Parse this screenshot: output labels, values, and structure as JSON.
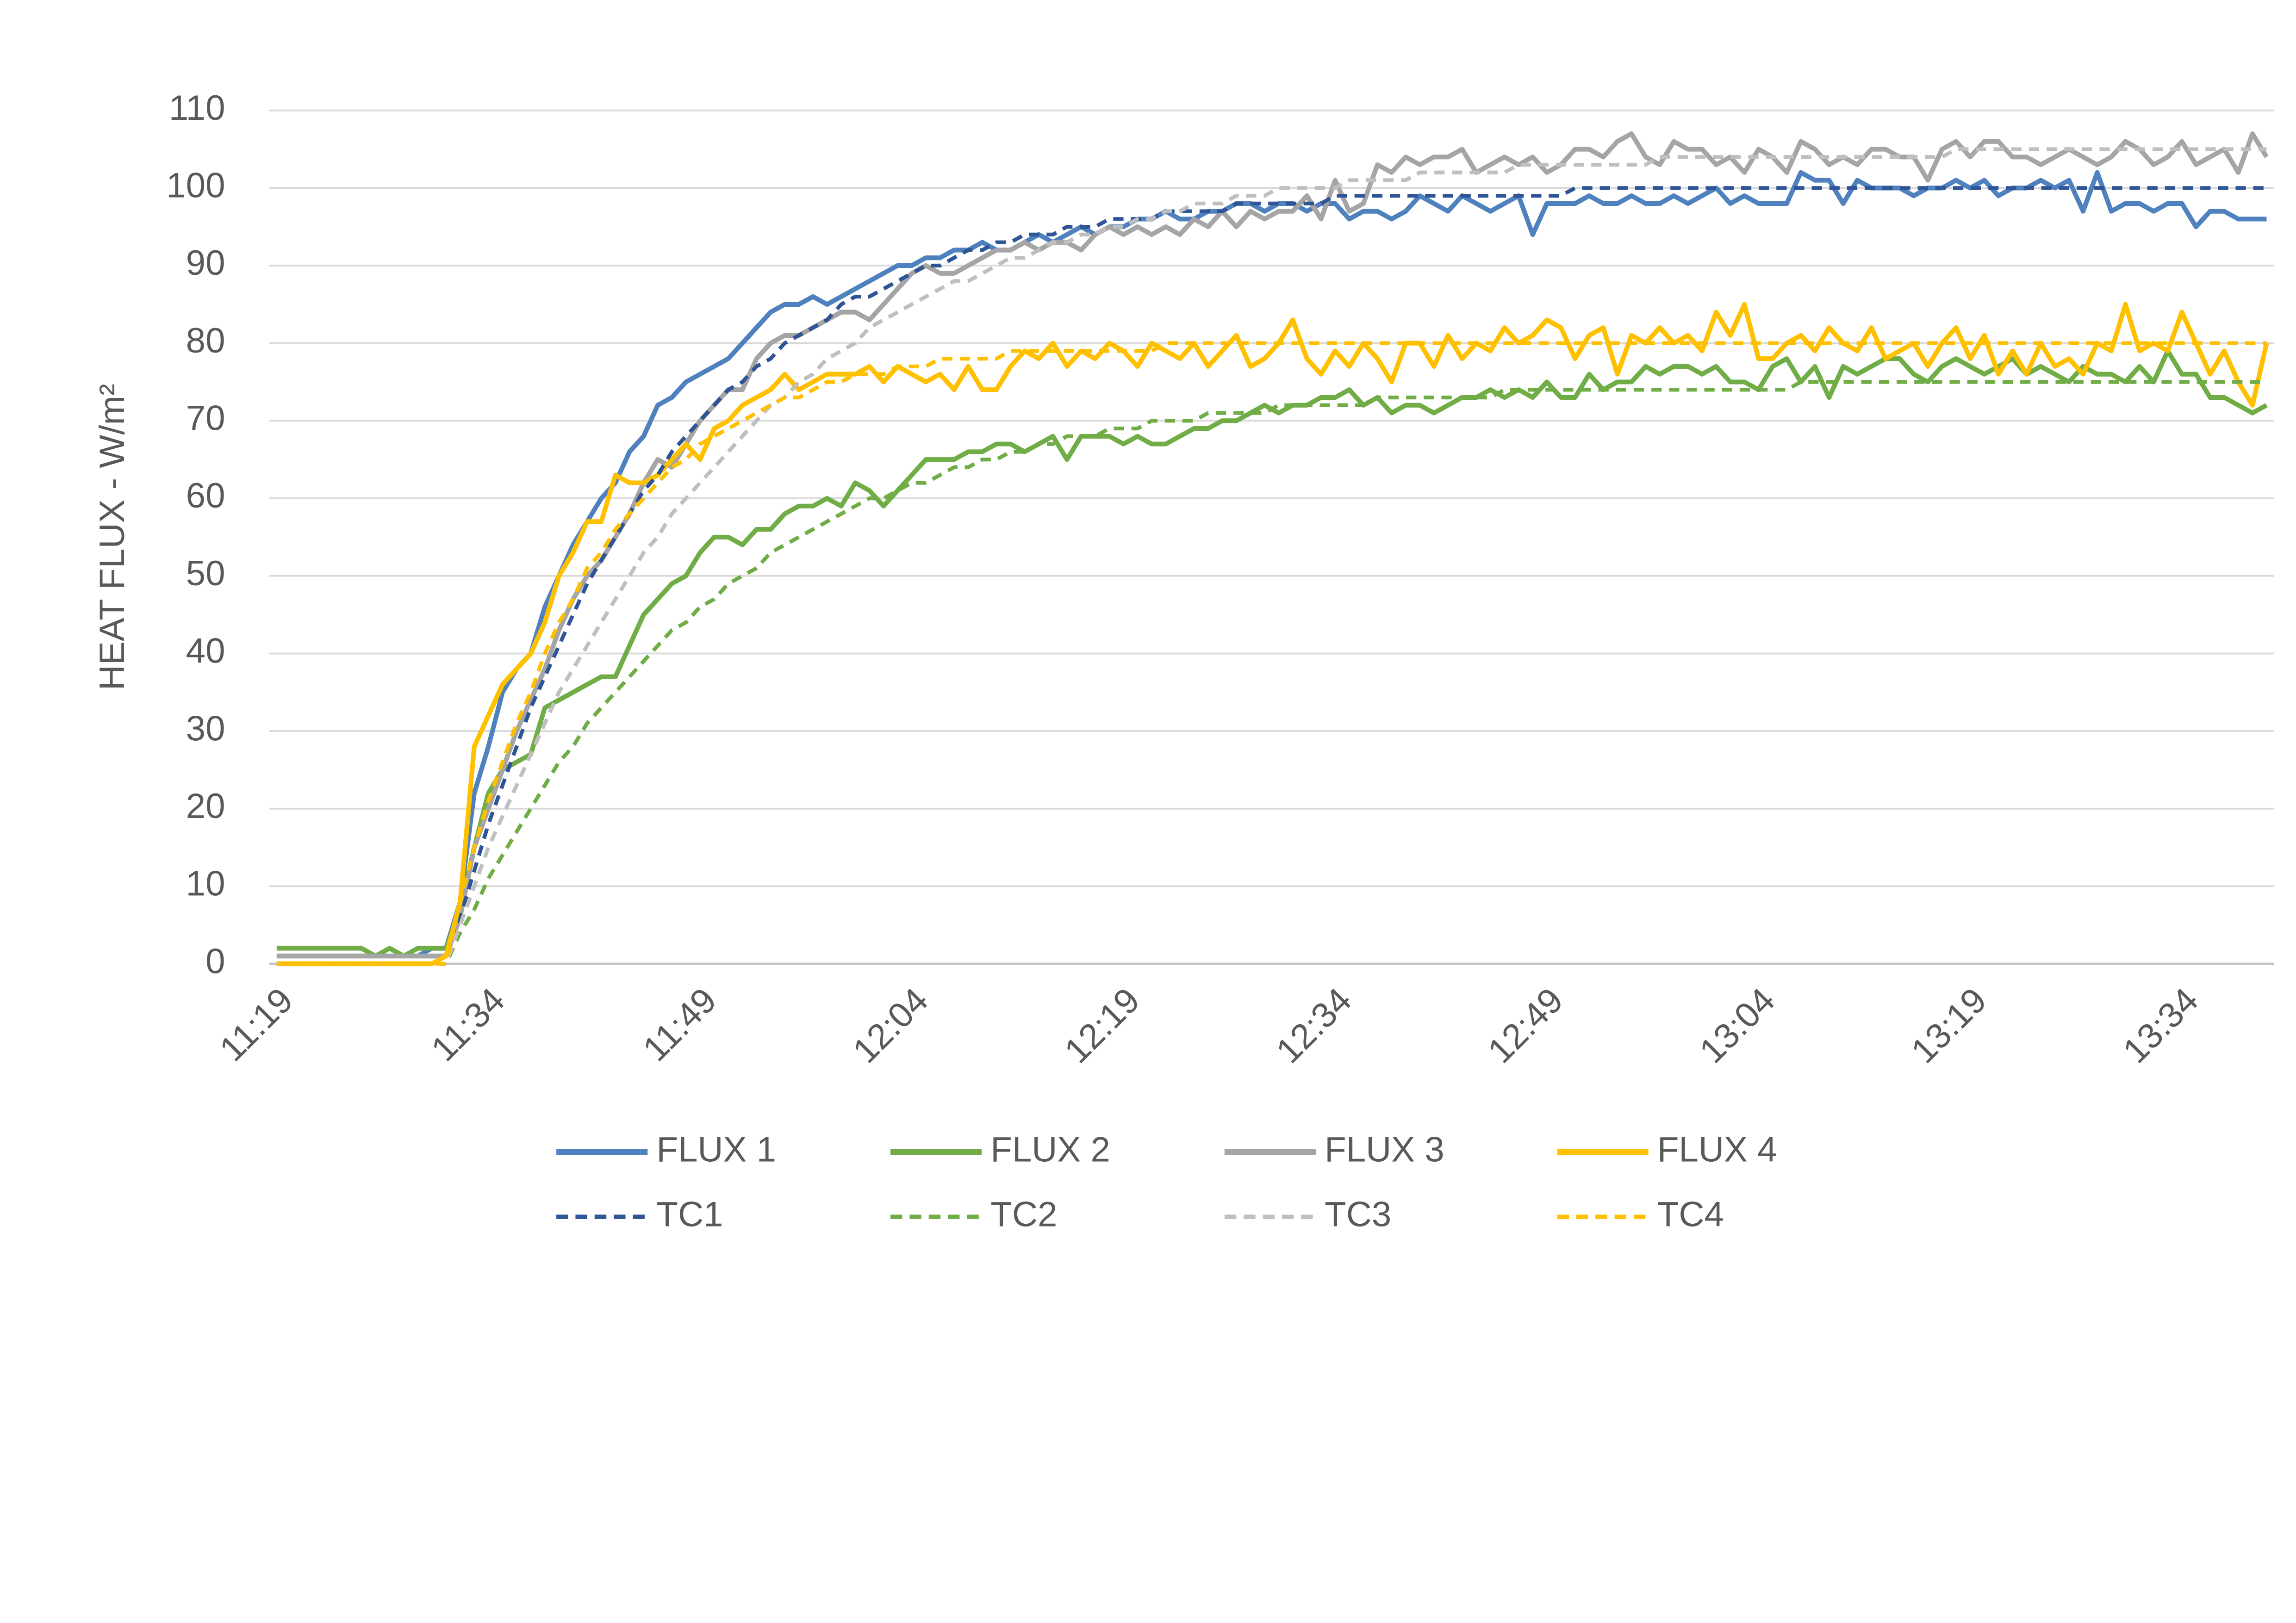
{
  "chart_data": {
    "type": "line",
    "y_label": "HEAT FLUX - W/m²",
    "categories": [
      "11:19",
      null,
      null,
      null,
      null,
      null,
      null,
      null,
      null,
      null,
      null,
      null,
      null,
      null,
      null,
      "11:34",
      null,
      null,
      null,
      null,
      null,
      null,
      null,
      null,
      null,
      null,
      null,
      null,
      null,
      null,
      "11:49",
      null,
      null,
      null,
      null,
      null,
      null,
      null,
      null,
      null,
      null,
      null,
      null,
      null,
      null,
      "12:04",
      null,
      null,
      null,
      null,
      null,
      null,
      null,
      null,
      null,
      null,
      null,
      null,
      null,
      null,
      "12:19",
      null,
      null,
      null,
      null,
      null,
      null,
      null,
      null,
      null,
      null,
      null,
      null,
      null,
      null,
      "12:34",
      null,
      null,
      null,
      null,
      null,
      null,
      null,
      null,
      null,
      null,
      null,
      null,
      null,
      null,
      "12:49",
      null,
      null,
      null,
      null,
      null,
      null,
      null,
      null,
      null,
      null,
      null,
      null,
      null,
      null,
      "13:04",
      null,
      null,
      null,
      null,
      null,
      null,
      null,
      null,
      null,
      null,
      null,
      null,
      null,
      null,
      "13:19",
      null,
      null,
      null,
      null,
      null,
      null,
      null,
      null,
      null,
      null,
      null,
      null,
      null,
      null,
      "13:34",
      null,
      null,
      null,
      null,
      null,
      null
    ],
    "ylim": [
      0,
      110
    ],
    "yticks": [
      0,
      10,
      20,
      30,
      40,
      50,
      60,
      70,
      80,
      90,
      100,
      110
    ],
    "grid": true,
    "legend": "bottom",
    "series": [
      {
        "name": "FLUX 1",
        "color": "#4e81bd",
        "dashed": false,
        "values": [
          1,
          1,
          1,
          1,
          1,
          1,
          1,
          1,
          1,
          1,
          1,
          2,
          2,
          8,
          22,
          28,
          35,
          38,
          40,
          46,
          50,
          54,
          57,
          60,
          62,
          66,
          68,
          72,
          73,
          75,
          76,
          77,
          78,
          80,
          82,
          84,
          85,
          85,
          86,
          85,
          86,
          87,
          88,
          89,
          90,
          90,
          91,
          91,
          92,
          92,
          93,
          92,
          92,
          93,
          94,
          93,
          94,
          95,
          94,
          95,
          95,
          96,
          96,
          97,
          96,
          96,
          97,
          97,
          98,
          98,
          97,
          98,
          98,
          97,
          98,
          98,
          96,
          97,
          97,
          96,
          97,
          99,
          98,
          97,
          99,
          98,
          97,
          98,
          99,
          94,
          98,
          98,
          98,
          99,
          98,
          98,
          99,
          98,
          98,
          99,
          98,
          99,
          100,
          98,
          99,
          98,
          98,
          98,
          102,
          101,
          101,
          98,
          101,
          100,
          100,
          100,
          99,
          100,
          100,
          101,
          100,
          101,
          99,
          100,
          100,
          101,
          100,
          101,
          97,
          102,
          97,
          98,
          98,
          97,
          98,
          98,
          95,
          97,
          97,
          96,
          96,
          96
        ]
      },
      {
        "name": "FLUX 2",
        "color": "#70ad47",
        "dashed": false,
        "values": [
          2,
          2,
          2,
          2,
          2,
          2,
          2,
          1,
          2,
          1,
          2,
          2,
          2,
          7,
          15,
          22,
          25,
          26,
          27,
          33,
          34,
          35,
          36,
          37,
          37,
          41,
          45,
          47,
          49,
          50,
          53,
          55,
          55,
          54,
          56,
          56,
          58,
          59,
          59,
          60,
          59,
          62,
          61,
          59,
          61,
          63,
          65,
          65,
          65,
          66,
          66,
          67,
          67,
          66,
          67,
          68,
          65,
          68,
          68,
          68,
          67,
          68,
          67,
          67,
          68,
          69,
          69,
          70,
          70,
          71,
          72,
          71,
          72,
          72,
          73,
          73,
          74,
          72,
          73,
          71,
          72,
          72,
          71,
          72,
          73,
          73,
          74,
          73,
          74,
          73,
          75,
          73,
          73,
          76,
          74,
          75,
          75,
          77,
          76,
          77,
          77,
          76,
          77,
          75,
          75,
          74,
          77,
          78,
          75,
          77,
          73,
          77,
          76,
          77,
          78,
          78,
          76,
          75,
          77,
          78,
          77,
          76,
          77,
          78,
          76,
          77,
          76,
          75,
          77,
          76,
          76,
          75,
          77,
          75,
          79,
          76,
          76,
          73,
          73,
          72,
          71,
          72
        ]
      },
      {
        "name": "FLUX 3",
        "color": "#a5a5a5",
        "dashed": false,
        "values": [
          1,
          1,
          1,
          1,
          1,
          1,
          1,
          1,
          1,
          1,
          1,
          1,
          1,
          6,
          15,
          20,
          25,
          30,
          34,
          38,
          43,
          47,
          50,
          52,
          55,
          58,
          62,
          65,
          64,
          67,
          70,
          72,
          74,
          74,
          78,
          80,
          81,
          81,
          82,
          83,
          84,
          84,
          83,
          85,
          87,
          89,
          90,
          89,
          89,
          90,
          91,
          92,
          92,
          93,
          92,
          93,
          93,
          92,
          94,
          95,
          94,
          95,
          94,
          95,
          94,
          96,
          95,
          97,
          95,
          97,
          96,
          97,
          97,
          99,
          96,
          101,
          97,
          98,
          103,
          102,
          104,
          103,
          104,
          104,
          105,
          102,
          103,
          104,
          103,
          104,
          102,
          103,
          105,
          105,
          104,
          106,
          107,
          104,
          103,
          106,
          105,
          105,
          103,
          104,
          102,
          105,
          104,
          102,
          106,
          105,
          103,
          104,
          103,
          105,
          105,
          104,
          104,
          101,
          105,
          106,
          104,
          106,
          106,
          104,
          104,
          103,
          104,
          105,
          104,
          103,
          104,
          106,
          105,
          103,
          104,
          106,
          103,
          104,
          105,
          102,
          107,
          104
        ]
      },
      {
        "name": "FLUX 4",
        "color": "#ffc000",
        "dashed": false,
        "values": [
          0,
          0,
          0,
          0,
          0,
          0,
          0,
          0,
          0,
          0,
          0,
          0,
          1,
          8,
          28,
          32,
          36,
          38,
          40,
          44,
          50,
          53,
          57,
          57,
          63,
          62,
          62,
          63,
          65,
          67,
          65,
          69,
          70,
          72,
          73,
          74,
          76,
          74,
          75,
          76,
          76,
          76,
          77,
          75,
          77,
          76,
          75,
          76,
          74,
          77,
          74,
          74,
          77,
          79,
          78,
          80,
          77,
          79,
          78,
          80,
          79,
          77,
          80,
          79,
          78,
          80,
          77,
          79,
          81,
          77,
          78,
          80,
          83,
          78,
          76,
          79,
          77,
          80,
          78,
          75,
          80,
          80,
          77,
          81,
          78,
          80,
          79,
          82,
          80,
          81,
          83,
          82,
          78,
          81,
          82,
          76,
          81,
          80,
          82,
          80,
          81,
          79,
          84,
          81,
          85,
          78,
          78,
          80,
          81,
          79,
          82,
          80,
          79,
          82,
          78,
          79,
          80,
          77,
          80,
          82,
          78,
          81,
          76,
          79,
          76,
          80,
          77,
          78,
          76,
          80,
          79,
          85,
          79,
          80,
          79,
          84,
          80,
          76,
          79,
          75,
          72,
          80
        ]
      },
      {
        "name": "TC1",
        "color": "#2f5597",
        "dashed": true,
        "values": [
          0,
          0,
          0,
          0,
          0,
          0,
          0,
          0,
          0,
          0,
          0,
          0,
          0,
          6,
          12,
          18,
          23,
          28,
          33,
          37,
          41,
          45,
          49,
          52,
          55,
          58,
          61,
          63,
          66,
          68,
          70,
          72,
          74,
          75,
          77,
          78,
          80,
          81,
          82,
          83,
          85,
          86,
          86,
          87,
          88,
          89,
          90,
          90,
          91,
          92,
          92,
          93,
          93,
          94,
          94,
          94,
          95,
          95,
          95,
          96,
          96,
          96,
          96,
          97,
          97,
          97,
          97,
          97,
          98,
          98,
          98,
          98,
          98,
          98,
          98,
          99,
          99,
          99,
          99,
          99,
          99,
          99,
          99,
          99,
          99,
          99,
          99,
          99,
          99,
          99,
          99,
          99,
          100,
          100,
          100,
          100,
          100,
          100,
          100,
          100,
          100,
          100,
          100,
          100,
          100,
          100,
          100,
          100,
          100,
          100,
          100,
          100,
          100,
          100,
          100,
          100,
          100,
          100,
          100,
          100,
          100,
          100,
          100,
          100,
          100,
          100,
          100,
          100,
          100,
          100,
          100,
          100,
          100,
          100,
          100,
          100,
          100,
          100,
          100,
          100,
          100,
          100
        ]
      },
      {
        "name": "TC2",
        "color": "#70ad47",
        "dashed": true,
        "values": [
          0,
          0,
          0,
          0,
          0,
          0,
          0,
          0,
          0,
          0,
          0,
          0,
          0,
          4,
          7,
          11,
          14,
          17,
          20,
          23,
          26,
          28,
          31,
          33,
          35,
          37,
          39,
          41,
          43,
          44,
          46,
          47,
          49,
          50,
          51,
          53,
          54,
          55,
          56,
          57,
          58,
          59,
          60,
          60,
          61,
          62,
          62,
          63,
          64,
          64,
          65,
          65,
          66,
          66,
          67,
          67,
          68,
          68,
          68,
          69,
          69,
          69,
          70,
          70,
          70,
          70,
          71,
          71,
          71,
          71,
          71,
          72,
          72,
          72,
          72,
          72,
          72,
          72,
          73,
          73,
          73,
          73,
          73,
          73,
          73,
          73,
          73,
          74,
          74,
          74,
          74,
          74,
          74,
          74,
          74,
          74,
          74,
          74,
          74,
          74,
          74,
          74,
          74,
          74,
          74,
          74,
          74,
          74,
          75,
          75,
          75,
          75,
          75,
          75,
          75,
          75,
          75,
          75,
          75,
          75,
          75,
          75,
          75,
          75,
          75,
          75,
          75,
          75,
          75,
          75,
          75,
          75,
          75,
          75,
          75,
          75,
          75,
          75,
          75,
          75,
          75,
          75
        ]
      },
      {
        "name": "TC3",
        "color": "#bfbfbf",
        "dashed": true,
        "values": [
          0,
          0,
          0,
          0,
          0,
          0,
          0,
          0,
          0,
          0,
          0,
          0,
          0,
          5,
          10,
          15,
          19,
          23,
          27,
          31,
          35,
          38,
          41,
          44,
          47,
          50,
          53,
          55,
          58,
          60,
          62,
          64,
          66,
          68,
          70,
          72,
          73,
          75,
          76,
          78,
          79,
          80,
          82,
          83,
          84,
          85,
          86,
          87,
          88,
          88,
          89,
          90,
          91,
          91,
          92,
          93,
          93,
          94,
          94,
          95,
          95,
          96,
          96,
          97,
          97,
          98,
          98,
          98,
          99,
          99,
          99,
          100,
          100,
          100,
          100,
          100,
          101,
          101,
          101,
          101,
          101,
          102,
          102,
          102,
          102,
          102,
          102,
          102,
          103,
          103,
          103,
          103,
          103,
          103,
          103,
          103,
          103,
          103,
          104,
          104,
          104,
          104,
          104,
          104,
          104,
          104,
          104,
          104,
          104,
          104,
          104,
          104,
          104,
          104,
          104,
          104,
          104,
          104,
          104,
          105,
          105,
          105,
          105,
          105,
          105,
          105,
          105,
          105,
          105,
          105,
          105,
          105,
          105,
          105,
          105,
          105,
          105,
          105,
          105,
          105,
          105,
          105
        ]
      },
      {
        "name": "TC4",
        "color": "#ffc000",
        "dashed": true,
        "values": [
          0,
          0,
          0,
          0,
          0,
          0,
          0,
          0,
          0,
          0,
          0,
          0,
          0,
          8,
          15,
          21,
          26,
          31,
          35,
          40,
          44,
          47,
          51,
          53,
          56,
          58,
          60,
          62,
          64,
          65,
          67,
          68,
          69,
          70,
          71,
          72,
          73,
          73,
          74,
          75,
          75,
          76,
          76,
          76,
          77,
          77,
          77,
          78,
          78,
          78,
          78,
          78,
          79,
          79,
          79,
          79,
          79,
          79,
          79,
          79,
          79,
          79,
          79,
          80,
          80,
          80,
          80,
          80,
          80,
          80,
          80,
          80,
          80,
          80,
          80,
          80,
          80,
          80,
          80,
          80,
          80,
          80,
          80,
          80,
          80,
          80,
          80,
          80,
          80,
          80,
          80,
          80,
          80,
          80,
          80,
          80,
          80,
          80,
          80,
          80,
          80,
          80,
          80,
          80,
          80,
          80,
          80,
          80,
          80,
          80,
          80,
          80,
          80,
          80,
          80,
          80,
          80,
          80,
          80,
          80,
          80,
          80,
          80,
          80,
          80,
          80,
          80,
          80,
          80,
          80,
          80,
          80,
          80,
          80,
          80,
          80,
          80,
          80,
          80,
          80,
          80,
          80
        ]
      }
    ]
  }
}
